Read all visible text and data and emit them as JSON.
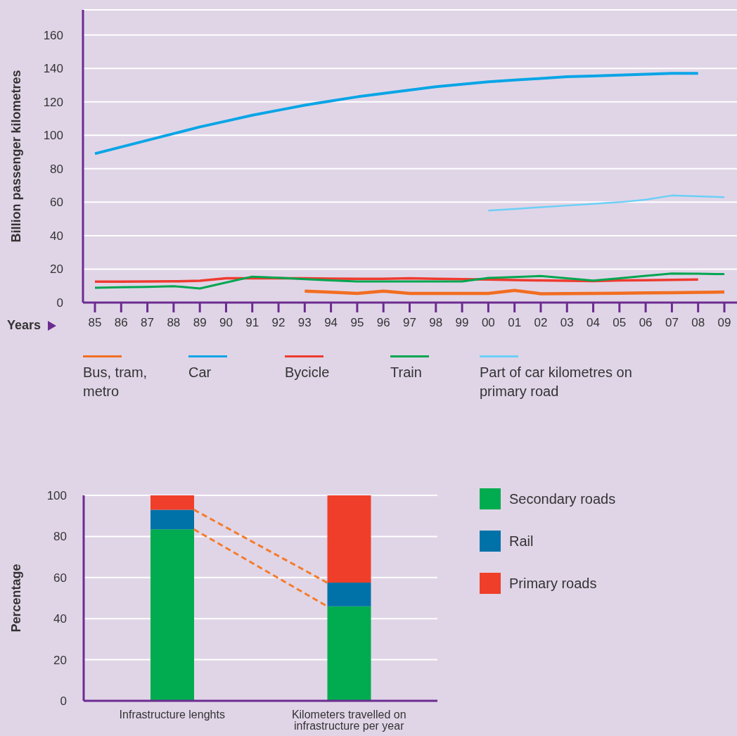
{
  "chart_data": [
    {
      "type": "line",
      "xlabel": "Years",
      "ylabel": "Billion passenger kilometres",
      "categories": [
        "85",
        "86",
        "87",
        "88",
        "89",
        "90",
        "91",
        "92",
        "93",
        "94",
        "95",
        "96",
        "97",
        "98",
        "99",
        "00",
        "01",
        "02",
        "03",
        "04",
        "05",
        "06",
        "07",
        "08",
        "09"
      ],
      "ylim": [
        0,
        175
      ],
      "yticks": [
        0,
        20,
        40,
        60,
        80,
        100,
        120,
        140,
        160
      ],
      "grid": "y",
      "legend": "bottom",
      "series": [
        {
          "name": "Bus, tram, metro",
          "color": "#f26d21",
          "values": [
            null,
            null,
            null,
            null,
            null,
            null,
            null,
            null,
            6.8,
            6.2,
            5.5,
            6.8,
            5.5,
            5.5,
            5.5,
            5.5,
            7.3,
            5.3,
            5.4,
            5.5,
            5.6,
            5.8,
            5.9,
            6.1,
            6.3
          ]
        },
        {
          "name": "Car",
          "color": "#0aa5e6",
          "values": [
            89,
            93,
            97,
            101,
            105,
            108.5,
            112,
            115,
            118,
            120.5,
            123,
            125,
            127,
            129,
            130.5,
            132,
            133,
            134,
            135,
            135.5,
            136,
            136.5,
            137,
            137,
            null
          ]
        },
        {
          "name": "Bycicle",
          "color": "#ee3b2f",
          "values": [
            12.5,
            12.5,
            12.6,
            12.7,
            13,
            14.5,
            14.5,
            14.5,
            14.5,
            14.3,
            14.2,
            14.2,
            14.5,
            14.2,
            14,
            13.8,
            13.5,
            13.2,
            13,
            12.8,
            13.2,
            13.4,
            13.6,
            13.8,
            null
          ]
        },
        {
          "name": "Train",
          "color": "#00a651",
          "values": [
            8.8,
            9.1,
            9.4,
            9.8,
            8.4,
            12,
            15.5,
            14.8,
            14,
            13.3,
            12.6,
            12.6,
            12.6,
            12.6,
            12.6,
            14.7,
            15.3,
            15.9,
            14.5,
            13.1,
            14.5,
            16,
            17.4,
            17.2,
            17
          ]
        },
        {
          "name": "Part of car kilometres on primary road",
          "color": "#6ccff6",
          "values": [
            null,
            null,
            null,
            null,
            null,
            null,
            null,
            null,
            null,
            null,
            null,
            null,
            null,
            null,
            null,
            55,
            56,
            57,
            58,
            59,
            60,
            61.5,
            64,
            63.5,
            63
          ]
        }
      ]
    },
    {
      "type": "bar",
      "stacked": true,
      "ylabel": "Percentage",
      "categories": [
        "Infrastructure lenghts",
        "Kilometers travelled on infrastructure per year"
      ],
      "ylim": [
        0,
        100
      ],
      "yticks": [
        0,
        20,
        40,
        60,
        80,
        100
      ],
      "grid": "y",
      "legend": "right",
      "series": [
        {
          "name": "Secondary roads",
          "color": "#00ac4f",
          "values": [
            83.5,
            46
          ]
        },
        {
          "name": "Rail",
          "color": "#0072a8",
          "values": [
            9.5,
            11.5
          ]
        },
        {
          "name": "Primary roads",
          "color": "#ef3e29",
          "values": [
            7,
            42.5
          ]
        }
      ]
    }
  ]
}
